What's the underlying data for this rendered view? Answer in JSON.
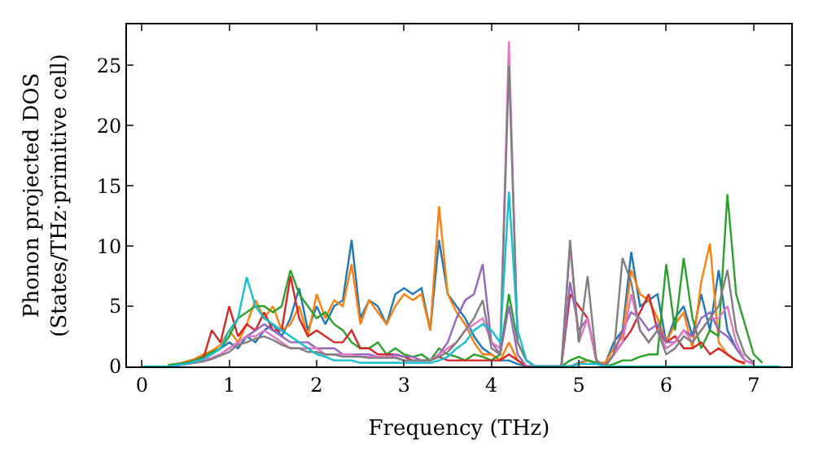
{
  "chart_data": {
    "type": "line",
    "xlabel": "Frequency (THz)",
    "ylabel": "Phonon projected DOS\n(States/THz·primitive cell)",
    "x": [
      0,
      0.1,
      0.2,
      0.3,
      0.4,
      0.5,
      0.6,
      0.7,
      0.8,
      0.9,
      1,
      1.1,
      1.2,
      1.3,
      1.4,
      1.5,
      1.6,
      1.7,
      1.8,
      1.9,
      2,
      2.1,
      2.2,
      2.3,
      2.4,
      2.5,
      2.6,
      2.7,
      2.8,
      2.9,
      3,
      3.1,
      3.2,
      3.3,
      3.4,
      3.5,
      3.6,
      3.7,
      3.8,
      3.9,
      4,
      4.1,
      4.2,
      4.3,
      4.4,
      4.5,
      4.6,
      4.7,
      4.8,
      4.9,
      5,
      5.1,
      5.2,
      5.3,
      5.4,
      5.5,
      5.6,
      5.7,
      5.8,
      5.9,
      6,
      6.1,
      6.2,
      6.3,
      6.4,
      6.5,
      6.6,
      6.7,
      6.8,
      6.9,
      7,
      7.1,
      7.2,
      7.3
    ],
    "series": [
      {
        "color": "#1f77b4",
        "values": [
          null,
          null,
          null,
          0.1,
          0.2,
          0.3,
          0.5,
          0.8,
          1.2,
          1.5,
          2,
          1.5,
          2.5,
          2,
          3,
          3.5,
          2.5,
          4,
          6.5,
          3,
          5,
          3.5,
          5,
          5.5,
          10.5,
          4,
          5.5,
          5,
          3.5,
          6,
          6.5,
          6,
          6.5,
          3,
          10.5,
          6,
          5,
          4,
          2.5,
          1.5,
          1,
          0.5,
          0.5,
          0.2,
          0,
          0,
          0,
          0,
          0,
          0,
          0.3,
          0.5,
          0.3,
          0.2,
          2,
          3,
          9.5,
          5,
          5.5,
          6,
          2,
          4,
          5,
          2.5,
          6,
          3,
          8,
          3,
          1.5,
          0.5,
          0.2,
          null,
          null,
          null
        ]
      },
      {
        "color": "#ff7f0e",
        "values": [
          null,
          null,
          null,
          0.1,
          0.2,
          0.4,
          0.6,
          1,
          1.3,
          1.8,
          3,
          2,
          3.5,
          5.5,
          4,
          5,
          3,
          3.5,
          5,
          2.5,
          6,
          4,
          5.5,
          5,
          8.5,
          3.5,
          5.5,
          4.5,
          3.5,
          5,
          6,
          5.5,
          6,
          3,
          13.3,
          6,
          4.5,
          3.5,
          2,
          1,
          1,
          0.5,
          2,
          0.5,
          0,
          0,
          0,
          0,
          0,
          0,
          0.2,
          0.5,
          0.3,
          0.3,
          1.5,
          2.5,
          8,
          6,
          5.5,
          4,
          2,
          3.5,
          4.5,
          1.5,
          7,
          10.2,
          2,
          1,
          0.5,
          0.2,
          null,
          null,
          null,
          null
        ]
      },
      {
        "color": "#2ca02c",
        "values": [
          null,
          null,
          null,
          0.1,
          0.2,
          0.3,
          0.5,
          0.8,
          1.2,
          1.5,
          2.5,
          4,
          4.5,
          5,
          5,
          4.5,
          5,
          8,
          6,
          5,
          4,
          4.5,
          3.5,
          3,
          2,
          1.5,
          1.5,
          2,
          1,
          1.5,
          1,
          0.8,
          1,
          0.5,
          1.5,
          1,
          0.8,
          0.5,
          1,
          0.8,
          0.5,
          1,
          6,
          2,
          0.5,
          0,
          0,
          0,
          0,
          0.5,
          0.8,
          0.5,
          0.3,
          0,
          0.2,
          0.5,
          0.5,
          0.8,
          1,
          1,
          8.5,
          3,
          9,
          4,
          1.5,
          3,
          2.5,
          14.3,
          6,
          3.5,
          1,
          0.3,
          null,
          null
        ]
      },
      {
        "color": "#d62728",
        "values": [
          null,
          null,
          null,
          null,
          0.1,
          0.2,
          0.4,
          0.6,
          3,
          2,
          5,
          2.5,
          3.5,
          3,
          4.5,
          3,
          3,
          7.5,
          4,
          2.5,
          3,
          2.5,
          2,
          2,
          3,
          1.5,
          1.5,
          1,
          1,
          1,
          0.8,
          0.5,
          0.5,
          0.5,
          0.8,
          0.5,
          0.5,
          0.5,
          0.5,
          0.5,
          0.5,
          0.5,
          1,
          0.5,
          0,
          0,
          0,
          0,
          0,
          6,
          5,
          4,
          0.5,
          0,
          1,
          2,
          3,
          4.5,
          6,
          3,
          2,
          2.5,
          1.5,
          1.5,
          2,
          1,
          1.5,
          1,
          0.5,
          0.3,
          null,
          null,
          null,
          null
        ]
      },
      {
        "color": "#9467bd",
        "values": [
          null,
          null,
          null,
          null,
          0.1,
          0.2,
          0.3,
          0.5,
          0.7,
          1,
          1.5,
          2,
          2.5,
          3,
          3.5,
          3,
          2.5,
          2,
          2,
          2,
          1.5,
          1.5,
          1.5,
          1,
          1,
          1,
          1,
          0.8,
          0.8,
          1,
          0.8,
          0.8,
          0.5,
          0.5,
          1,
          2,
          4,
          5.5,
          6,
          8.5,
          2,
          1,
          5,
          1,
          0,
          0,
          0,
          0,
          0,
          7,
          3,
          4,
          0.5,
          0,
          1,
          3,
          4.5,
          4,
          3,
          3.5,
          2,
          2,
          3,
          2.5,
          4,
          4.5,
          3,
          2.5,
          1.5,
          0.5,
          0.2,
          null,
          null,
          null
        ]
      },
      {
        "color": "#e377c2",
        "values": [
          null,
          null,
          null,
          null,
          null,
          null,
          0.3,
          0.5,
          0.7,
          1,
          1.5,
          2,
          2.5,
          2.5,
          3,
          2.5,
          2,
          1.5,
          1.5,
          1.5,
          1.5,
          1,
          1,
          1,
          1,
          0.8,
          0.8,
          0.8,
          0.8,
          0.8,
          0.5,
          0.5,
          0.5,
          0.5,
          1,
          1.5,
          2,
          3,
          3.5,
          4,
          2,
          1.5,
          27,
          2,
          0.5,
          0,
          0,
          0,
          0,
          10,
          2,
          4,
          0.5,
          0,
          1,
          2,
          6,
          3,
          2,
          3,
          1.5,
          2,
          3,
          2,
          3,
          4,
          4,
          5,
          2,
          0.5,
          0.2,
          null,
          null,
          null
        ]
      },
      {
        "color": "#7f7f7f",
        "values": [
          null,
          null,
          null,
          null,
          0.1,
          0.2,
          0.3,
          0.4,
          0.6,
          0.9,
          1.2,
          1.8,
          2,
          2.3,
          2.5,
          2.2,
          1.8,
          1.5,
          1.5,
          1.2,
          1.2,
          1,
          1,
          0.8,
          0.8,
          0.8,
          0.7,
          0.7,
          0.7,
          0.7,
          0.5,
          0.5,
          0.5,
          0.5,
          0.8,
          1.2,
          2,
          3,
          4,
          5.5,
          1.5,
          1,
          25,
          2,
          0.5,
          0,
          0,
          0,
          0,
          10.5,
          2,
          7.5,
          0.5,
          0,
          1,
          9,
          7,
          3,
          2,
          3,
          1,
          1.5,
          2.5,
          2,
          3,
          4,
          5,
          8,
          3,
          1,
          0.3,
          null,
          null,
          null
        ]
      },
      {
        "color": "#17becf",
        "values": [
          0,
          0,
          0,
          0,
          0.1,
          0.2,
          0.4,
          0.6,
          1,
          1.5,
          3,
          4,
          7.4,
          5,
          4,
          3.5,
          3,
          2.5,
          2,
          1.5,
          1,
          0.8,
          0.5,
          0.5,
          0.5,
          0.3,
          0.3,
          0.3,
          0.3,
          0.3,
          0.3,
          0.3,
          0.3,
          0.3,
          0.5,
          0.8,
          1.5,
          2,
          3,
          3.5,
          3,
          2,
          14.5,
          3,
          0.5,
          0,
          0,
          0,
          0,
          0,
          0.2,
          0.2,
          0.2,
          0,
          0,
          0,
          0,
          0,
          0,
          0,
          0,
          0,
          0,
          0,
          0,
          0,
          0,
          0,
          0,
          0,
          0,
          0,
          0,
          0
        ]
      }
    ],
    "xlim": [
      -0.17,
      7.43
    ],
    "ylim": [
      0,
      28.4
    ],
    "xticks": [
      0,
      1,
      2,
      3,
      4,
      5,
      6,
      7
    ],
    "yticks": [
      0,
      5,
      10,
      15,
      20,
      25
    ],
    "marker": "none",
    "line_style": "solid"
  }
}
